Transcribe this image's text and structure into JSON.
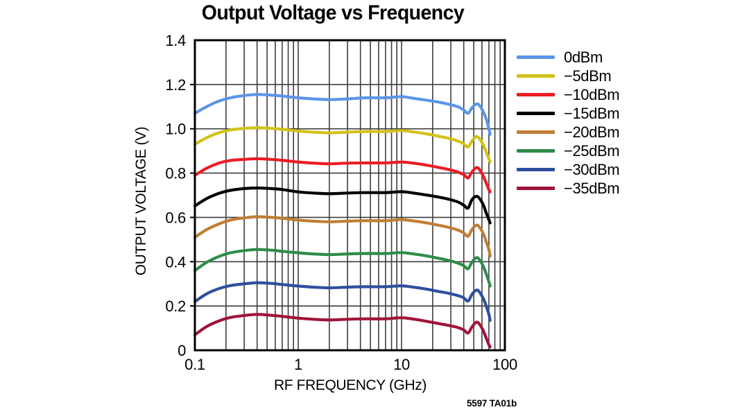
{
  "title": "Output Voltage vs Frequency",
  "figure_note": "5597 TA01b",
  "chart_data": {
    "type": "line",
    "title": "Output Voltage vs Frequency",
    "xlabel": "RF FREQUENCY (GHz)",
    "ylabel": "OUTPUT VOLTAGE (V)",
    "x_scale": "log",
    "xlim": [
      0.1,
      100
    ],
    "ylim": [
      0,
      1.4
    ],
    "x_tick_labels": [
      "0.1",
      "1",
      "10",
      "100"
    ],
    "y_tick_labels": [
      "0",
      "0.2",
      "0.4",
      "0.6",
      "0.8",
      "1.0",
      "1.2",
      "1.4"
    ],
    "grid": "on; log minor x-grid each decade, y-grid every 0.2, dark gray lines",
    "legend_position": "right",
    "grid_color": "#3d3d3d",
    "frame_color": "#000000",
    "frequencies_ghz": [
      0.1,
      0.13,
      0.17,
      0.22,
      0.3,
      0.4,
      0.55,
      0.7,
      1,
      1.4,
      2,
      3,
      4.5,
      7,
      10,
      13,
      17,
      22,
      28,
      35,
      40,
      44,
      48,
      53,
      57,
      62,
      66,
      70,
      72
    ],
    "series": [
      {
        "label": "0dBm",
        "color": "#5c95e8",
        "values": [
          1.07,
          1.1,
          1.125,
          1.14,
          1.15,
          1.155,
          1.152,
          1.148,
          1.14,
          1.135,
          1.132,
          1.135,
          1.14,
          1.14,
          1.145,
          1.138,
          1.13,
          1.122,
          1.112,
          1.1,
          1.085,
          1.07,
          1.095,
          1.112,
          1.105,
          1.075,
          1.045,
          1.0,
          0.975
        ]
      },
      {
        "label": "−5dBm",
        "color": "#d2c218",
        "values": [
          0.93,
          0.96,
          0.982,
          0.995,
          1.002,
          1.005,
          1.002,
          0.998,
          0.99,
          0.985,
          0.982,
          0.985,
          0.988,
          0.988,
          0.992,
          0.986,
          0.978,
          0.968,
          0.958,
          0.945,
          0.932,
          0.918,
          0.945,
          0.965,
          0.955,
          0.925,
          0.895,
          0.865,
          0.85
        ]
      },
      {
        "label": "−10dBm",
        "color": "#ec1c24",
        "values": [
          0.79,
          0.822,
          0.845,
          0.857,
          0.862,
          0.865,
          0.862,
          0.858,
          0.85,
          0.845,
          0.842,
          0.845,
          0.846,
          0.846,
          0.85,
          0.845,
          0.837,
          0.827,
          0.817,
          0.805,
          0.793,
          0.778,
          0.805,
          0.825,
          0.815,
          0.785,
          0.755,
          0.725,
          0.715
        ]
      },
      {
        "label": "−15dBm",
        "color": "#000000",
        "values": [
          0.652,
          0.685,
          0.708,
          0.722,
          0.73,
          0.733,
          0.73,
          0.726,
          0.715,
          0.71,
          0.707,
          0.71,
          0.712,
          0.712,
          0.716,
          0.71,
          0.702,
          0.693,
          0.683,
          0.67,
          0.655,
          0.642,
          0.68,
          0.695,
          0.685,
          0.655,
          0.62,
          0.59,
          0.575
        ]
      },
      {
        "label": "−20dBm",
        "color": "#c07e35",
        "values": [
          0.51,
          0.545,
          0.57,
          0.588,
          0.598,
          0.603,
          0.6,
          0.596,
          0.588,
          0.583,
          0.58,
          0.583,
          0.585,
          0.585,
          0.59,
          0.584,
          0.576,
          0.566,
          0.556,
          0.543,
          0.53,
          0.515,
          0.545,
          0.565,
          0.555,
          0.525,
          0.49,
          0.455,
          0.425
        ]
      },
      {
        "label": "−25dBm",
        "color": "#2e8b4a",
        "values": [
          0.36,
          0.397,
          0.423,
          0.44,
          0.45,
          0.455,
          0.452,
          0.447,
          0.44,
          0.435,
          0.432,
          0.435,
          0.437,
          0.437,
          0.441,
          0.435,
          0.427,
          0.417,
          0.407,
          0.394,
          0.382,
          0.368,
          0.398,
          0.418,
          0.408,
          0.378,
          0.345,
          0.31,
          0.29
        ]
      },
      {
        "label": "−30dBm",
        "color": "#2f4f9e",
        "values": [
          0.22,
          0.255,
          0.278,
          0.292,
          0.3,
          0.305,
          0.302,
          0.297,
          0.29,
          0.285,
          0.282,
          0.285,
          0.287,
          0.287,
          0.291,
          0.285,
          0.277,
          0.267,
          0.258,
          0.247,
          0.237,
          0.222,
          0.252,
          0.272,
          0.262,
          0.232,
          0.2,
          0.162,
          0.135
        ]
      },
      {
        "label": "−35dBm",
        "color": "#a0143a",
        "values": [
          0.07,
          0.107,
          0.132,
          0.148,
          0.157,
          0.162,
          0.158,
          0.153,
          0.145,
          0.14,
          0.137,
          0.14,
          0.142,
          0.142,
          0.147,
          0.141,
          0.132,
          0.122,
          0.113,
          0.103,
          0.092,
          0.078,
          0.105,
          0.127,
          0.117,
          0.087,
          0.055,
          0.025,
          0.015
        ]
      }
    ]
  }
}
